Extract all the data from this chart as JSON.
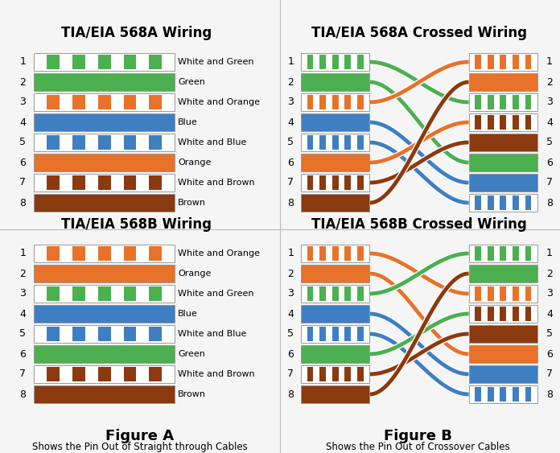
{
  "colors": {
    "green": "#4CAF50",
    "orange": "#E8722A",
    "blue": "#3F7FC1",
    "brown": "#8B3A0F",
    "white": "#FFFFFF",
    "bg": "#F5F5F5",
    "border": "#999999"
  },
  "568A": {
    "title": "TIA/EIA 568A Wiring",
    "pins": [
      {
        "label": "White and Green",
        "type": "striped",
        "color": "#4CAF50"
      },
      {
        "label": "Green",
        "type": "solid",
        "color": "#4CAF50"
      },
      {
        "label": "White and Orange",
        "type": "striped",
        "color": "#E8722A"
      },
      {
        "label": "Blue",
        "type": "solid",
        "color": "#3F7FC1"
      },
      {
        "label": "White and Blue",
        "type": "striped",
        "color": "#3F7FC1"
      },
      {
        "label": "Orange",
        "type": "solid",
        "color": "#E8722A"
      },
      {
        "label": "White and Brown",
        "type": "striped",
        "color": "#8B3A0F"
      },
      {
        "label": "Brown",
        "type": "solid",
        "color": "#8B3A0F"
      }
    ]
  },
  "568B": {
    "title": "TIA/EIA 568B Wiring",
    "pins": [
      {
        "label": "White and Orange",
        "type": "striped",
        "color": "#E8722A"
      },
      {
        "label": "Orange",
        "type": "solid",
        "color": "#E8722A"
      },
      {
        "label": "White and Green",
        "type": "striped",
        "color": "#4CAF50"
      },
      {
        "label": "Blue",
        "type": "solid",
        "color": "#3F7FC1"
      },
      {
        "label": "White and Blue",
        "type": "striped",
        "color": "#3F7FC1"
      },
      {
        "label": "Green",
        "type": "solid",
        "color": "#4CAF50"
      },
      {
        "label": "White and Brown",
        "type": "striped",
        "color": "#8B3A0F"
      },
      {
        "label": "Brown",
        "type": "solid",
        "color": "#8B3A0F"
      }
    ]
  },
  "568A_cross": {
    "title": "TIA/EIA 568A Crossed Wiring",
    "left_pins": [
      {
        "type": "striped",
        "color": "#4CAF50"
      },
      {
        "type": "solid",
        "color": "#4CAF50"
      },
      {
        "type": "striped",
        "color": "#E8722A"
      },
      {
        "type": "solid",
        "color": "#3F7FC1"
      },
      {
        "type": "striped",
        "color": "#3F7FC1"
      },
      {
        "type": "solid",
        "color": "#E8722A"
      },
      {
        "type": "striped",
        "color": "#8B3A0F"
      },
      {
        "type": "solid",
        "color": "#8B3A0F"
      }
    ],
    "right_pins": [
      {
        "type": "striped",
        "color": "#E8722A"
      },
      {
        "type": "solid",
        "color": "#E8722A"
      },
      {
        "type": "striped",
        "color": "#4CAF50"
      },
      {
        "type": "striped",
        "color": "#8B3A0F"
      },
      {
        "type": "solid",
        "color": "#8B3A0F"
      },
      {
        "type": "solid",
        "color": "#4CAF50"
      },
      {
        "type": "solid",
        "color": "#3F7FC1"
      },
      {
        "type": "striped",
        "color": "#3F7FC1"
      }
    ],
    "cross_map": [
      2,
      5,
      0,
      6,
      7,
      3,
      4,
      1
    ]
  },
  "568B_cross": {
    "title": "TIA/EIA 568B Crossed Wiring",
    "left_pins": [
      {
        "type": "striped",
        "color": "#E8722A"
      },
      {
        "type": "solid",
        "color": "#E8722A"
      },
      {
        "type": "striped",
        "color": "#4CAF50"
      },
      {
        "type": "solid",
        "color": "#3F7FC1"
      },
      {
        "type": "striped",
        "color": "#3F7FC1"
      },
      {
        "type": "solid",
        "color": "#4CAF50"
      },
      {
        "type": "striped",
        "color": "#8B3A0F"
      },
      {
        "type": "solid",
        "color": "#8B3A0F"
      }
    ],
    "right_pins": [
      {
        "type": "striped",
        "color": "#4CAF50"
      },
      {
        "type": "solid",
        "color": "#4CAF50"
      },
      {
        "type": "striped",
        "color": "#E8722A"
      },
      {
        "type": "striped",
        "color": "#8B3A0F"
      },
      {
        "type": "solid",
        "color": "#8B3A0F"
      },
      {
        "type": "solid",
        "color": "#E8722A"
      },
      {
        "type": "solid",
        "color": "#3F7FC1"
      },
      {
        "type": "striped",
        "color": "#3F7FC1"
      }
    ],
    "cross_map": [
      2,
      5,
      0,
      6,
      7,
      3,
      4,
      1
    ]
  },
  "figure_a": "Figure A",
  "figure_b": "Figure B",
  "caption_a": "Shows the Pin Out of Straight through Cables",
  "caption_b": "Shows the Pin Out of Crossover Cables"
}
